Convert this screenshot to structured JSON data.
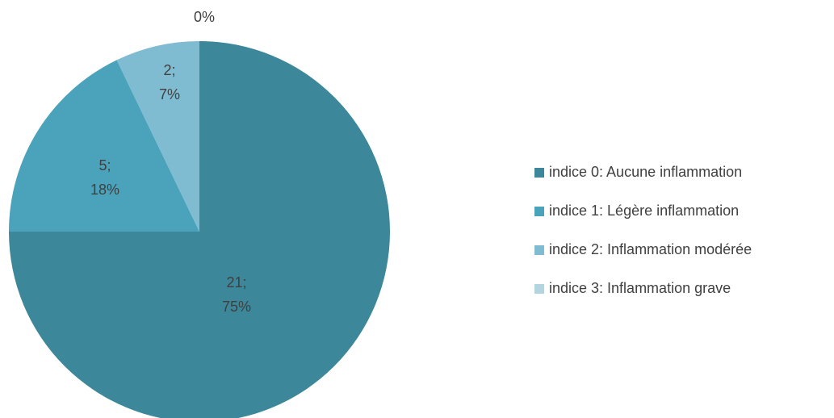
{
  "chart_data": {
    "type": "pie",
    "categories": [
      "indice 0: Aucune inflammation",
      "indice 1: Légère inflammation",
      "indice 2: Inflammation modérée",
      "indice 3: Inflammation grave"
    ],
    "values": [
      21,
      5,
      2,
      0
    ],
    "value_labels": [
      [
        "21;",
        "75%"
      ],
      [
        "5;",
        "18%"
      ],
      [
        "2;",
        "7%"
      ],
      [
        "0%"
      ]
    ],
    "colors": [
      "#3c8799",
      "#4aa3bb",
      "#7fbcd1",
      "#b3d5e2"
    ],
    "legend": "right"
  }
}
